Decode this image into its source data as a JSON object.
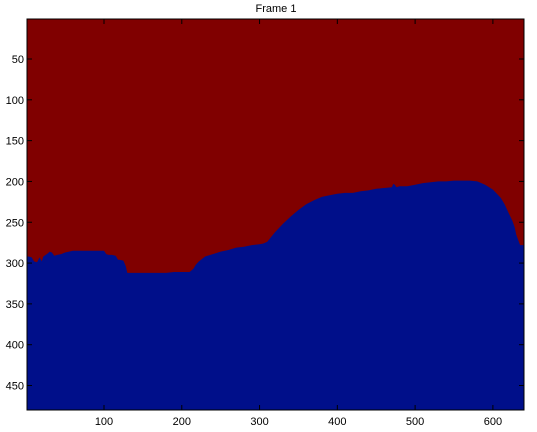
{
  "chart_data": {
    "type": "heatmap",
    "title": "Frame 1",
    "xlabel": "",
    "ylabel": "",
    "xlim": [
      1,
      640
    ],
    "ylim": [
      480,
      1
    ],
    "y_reversed": true,
    "grid": false,
    "x_ticks": [
      100,
      200,
      300,
      400,
      500,
      600
    ],
    "y_ticks": [
      50,
      100,
      150,
      200,
      250,
      300,
      350,
      400,
      450
    ],
    "x_tick_labels": [
      "100",
      "200",
      "300",
      "400",
      "500",
      "600"
    ],
    "y_tick_labels": [
      "50",
      "100",
      "150",
      "200",
      "250",
      "300",
      "350",
      "400",
      "450"
    ],
    "colors": {
      "upper_region": "#800000",
      "lower_region": "#000f8a"
    },
    "boundary": {
      "description_units": "x = column index, y = row index (row where lower region begins)",
      "x": [
        1,
        3,
        7,
        10,
        14,
        17,
        20,
        22,
        25,
        28,
        30,
        33,
        36,
        40,
        45,
        50,
        60,
        80,
        100,
        103,
        106,
        110,
        115,
        118,
        120,
        125,
        128,
        130,
        140,
        150,
        160,
        170,
        180,
        190,
        200,
        210,
        215,
        218,
        222,
        226,
        230,
        240,
        250,
        260,
        270,
        280,
        290,
        300,
        305,
        310,
        315,
        320,
        330,
        340,
        350,
        360,
        370,
        380,
        390,
        400,
        410,
        420,
        430,
        440,
        450,
        460,
        470,
        472,
        474,
        476,
        480,
        490,
        500,
        510,
        520,
        530,
        540,
        550,
        560,
        570,
        580,
        590,
        600,
        610,
        615,
        620,
        625,
        628,
        630,
        635,
        640
      ],
      "y": [
        292,
        292,
        293,
        298,
        299,
        293,
        298,
        292,
        290,
        288,
        286,
        287,
        291,
        290,
        289,
        287,
        285,
        285,
        285,
        289,
        290,
        290,
        291,
        296,
        296,
        297,
        304,
        312,
        312,
        312,
        312,
        312,
        312,
        311,
        311,
        311,
        307,
        302,
        298,
        295,
        292,
        289,
        286,
        284,
        281,
        280,
        278,
        277,
        276,
        274,
        268,
        262,
        252,
        243,
        235,
        228,
        223,
        219,
        217,
        215,
        214,
        214,
        212,
        211,
        209,
        208,
        207,
        203,
        204,
        207,
        206,
        206,
        204,
        202,
        201,
        200,
        200,
        199,
        199,
        199,
        200,
        204,
        210,
        220,
        228,
        238,
        248,
        256,
        265,
        278,
        278
      ]
    }
  }
}
